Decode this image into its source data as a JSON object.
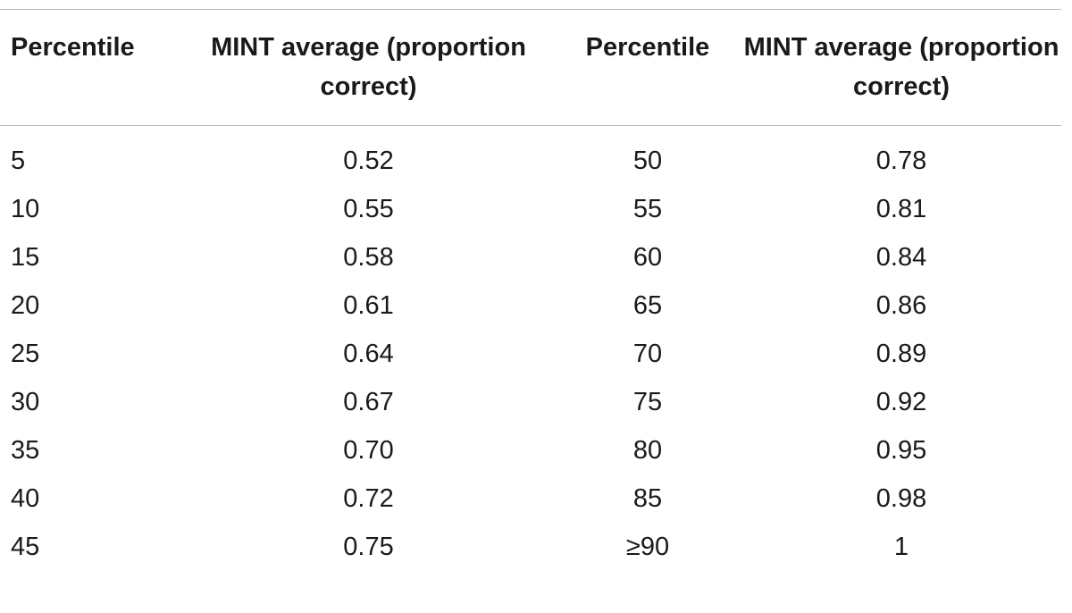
{
  "table": {
    "headers": [
      "Percentile",
      "MINT average (proportion correct)",
      "Percentile",
      "MINT average (proportion correct)"
    ],
    "rows": [
      [
        "5",
        "0.52",
        "50",
        "0.78"
      ],
      [
        "10",
        "0.55",
        "55",
        "0.81"
      ],
      [
        "15",
        "0.58",
        "60",
        "0.84"
      ],
      [
        "20",
        "0.61",
        "65",
        "0.86"
      ],
      [
        "25",
        "0.64",
        "70",
        "0.89"
      ],
      [
        "30",
        "0.67",
        "75",
        "0.92"
      ],
      [
        "35",
        "0.70",
        "80",
        "0.95"
      ],
      [
        "40",
        "0.72",
        "85",
        "0.98"
      ],
      [
        "45",
        "0.75",
        "≥90",
        "1"
      ]
    ]
  }
}
